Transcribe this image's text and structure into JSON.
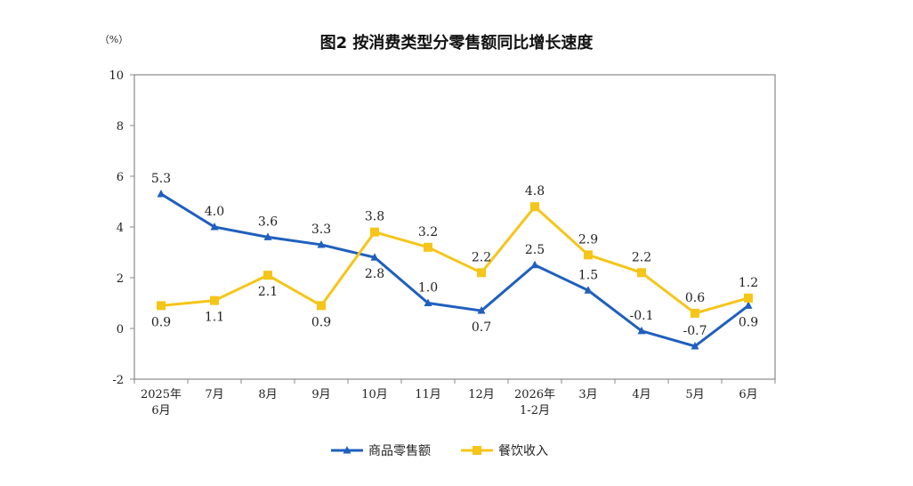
{
  "chart_data": {
    "type": "line",
    "title": "图2 按消费类型分零售额同比增长速度",
    "unit_label": "（%）",
    "ylim": [
      -2,
      10
    ],
    "yticks": [
      "10",
      "8",
      "6",
      "4",
      "2",
      "0",
      "-2"
    ],
    "categories": [
      [
        "2025年",
        "6月"
      ],
      [
        "7月"
      ],
      [
        "8月"
      ],
      [
        "9月"
      ],
      [
        "10月"
      ],
      [
        "11月"
      ],
      [
        "12月"
      ],
      [
        "2026年",
        "1-2月"
      ],
      [
        "3月"
      ],
      [
        "4月"
      ],
      [
        "5月"
      ],
      [
        "6月"
      ]
    ],
    "grid": false,
    "legend_position": "bottom",
    "series": [
      {
        "name": "商品零售额",
        "color": "#1f5fbf",
        "marker": "triangle",
        "values": [
          5.3,
          4.0,
          3.6,
          3.3,
          2.8,
          1.0,
          0.7,
          2.5,
          1.5,
          -0.1,
          -0.7,
          0.9
        ],
        "labels": [
          "5.3",
          "4.0",
          "3.6",
          "3.3",
          "2.8",
          "1.0",
          "0.7",
          "2.5",
          "1.5",
          "-0.1",
          "-0.7",
          "0.9"
        ],
        "label_side": [
          "above",
          "above",
          "above",
          "above",
          "below",
          "above",
          "below",
          "above",
          "above",
          "above",
          "above",
          "below"
        ]
      },
      {
        "name": "餐饮收入",
        "color": "#f5c518",
        "marker": "square",
        "values": [
          0.9,
          1.1,
          2.1,
          0.9,
          3.8,
          3.2,
          2.2,
          4.8,
          2.9,
          2.2,
          0.6,
          1.2
        ],
        "labels": [
          "0.9",
          "1.1",
          "2.1",
          "0.9",
          "3.8",
          "3.2",
          "2.2",
          "4.8",
          "2.9",
          "2.2",
          "0.6",
          "1.2"
        ],
        "label_side": [
          "below",
          "below",
          "below",
          "below",
          "above",
          "above",
          "above",
          "above",
          "above",
          "above",
          "above",
          "above"
        ]
      }
    ]
  }
}
